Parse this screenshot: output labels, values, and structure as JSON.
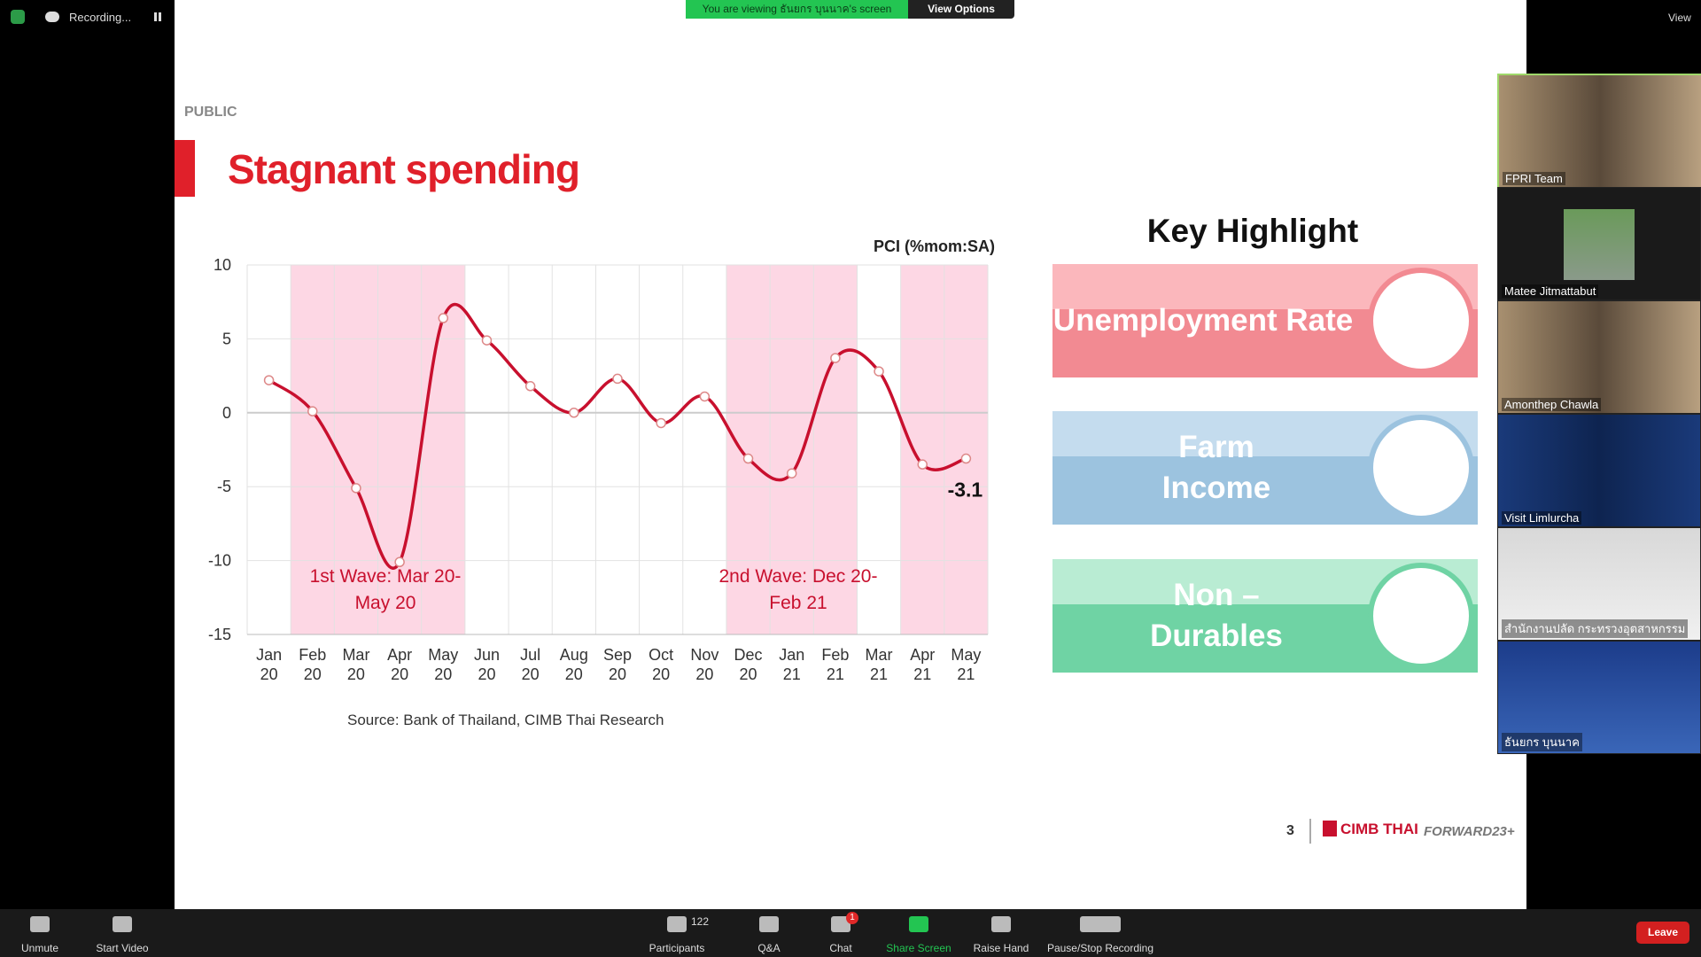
{
  "zoom": {
    "recording": "Recording...",
    "banner": "You are viewing ธันยกร บุนนาค's screen",
    "view_options": "View Options",
    "view": "View",
    "participants": [
      "FPRI Team",
      "Matee Jitmattabut",
      "Amonthep Chawla",
      "Visit Limlurcha",
      "สำนักงานปลัด กระทรวงอุตสาหกรรม",
      "ธันยกร บุนนาค"
    ],
    "toolbar": {
      "unmute": "Unmute",
      "start_video": "Start Video",
      "participants": "Participants",
      "participant_count": 122,
      "qa": "Q&A",
      "chat": "Chat",
      "chat_badge": 1,
      "share_screen": "Share Screen",
      "raise_hand": "Raise Hand",
      "recording_control": "Pause/Stop Recording",
      "leave": "Leave"
    }
  },
  "slide": {
    "label": "PUBLIC",
    "key_highlight": "Key Highlight",
    "highlights": [
      "Unemployment Rate",
      "Farm Income",
      "Non – Durables"
    ],
    "source": "Source: Bank of Thailand, CIMB Thai Research",
    "page_number": 3,
    "brand": "CIMB THAI",
    "campaign": "FORWARD23+"
  },
  "chart_data": {
    "type": "line",
    "title": "Stagnant spending",
    "y_label": "PCI (%mom:SA)",
    "categories": [
      "Jan 20",
      "Feb 20",
      "Mar 20",
      "Apr 20",
      "May 20",
      "Jun 20",
      "Jul 20",
      "Aug 20",
      "Sep 20",
      "Oct 20",
      "Nov 20",
      "Dec 20",
      "Jan 21",
      "Feb 21",
      "Mar 21",
      "Apr 21",
      "May 21"
    ],
    "values": [
      2.2,
      0.1,
      -5.1,
      -10.1,
      6.4,
      4.9,
      1.8,
      0,
      2.3,
      -0.7,
      1.1,
      -3.1,
      -4.1,
      3.7,
      2.8,
      -3.5,
      -3.1
    ],
    "color": "#c8102e",
    "ylim": [
      -15,
      10
    ],
    "yticks": [
      -15,
      -10,
      -5,
      0,
      5,
      10
    ],
    "grid": true,
    "annotations": [
      "1st Wave: Mar 20-May 20",
      "2nd Wave: Dec 20-Feb 21"
    ]
  }
}
